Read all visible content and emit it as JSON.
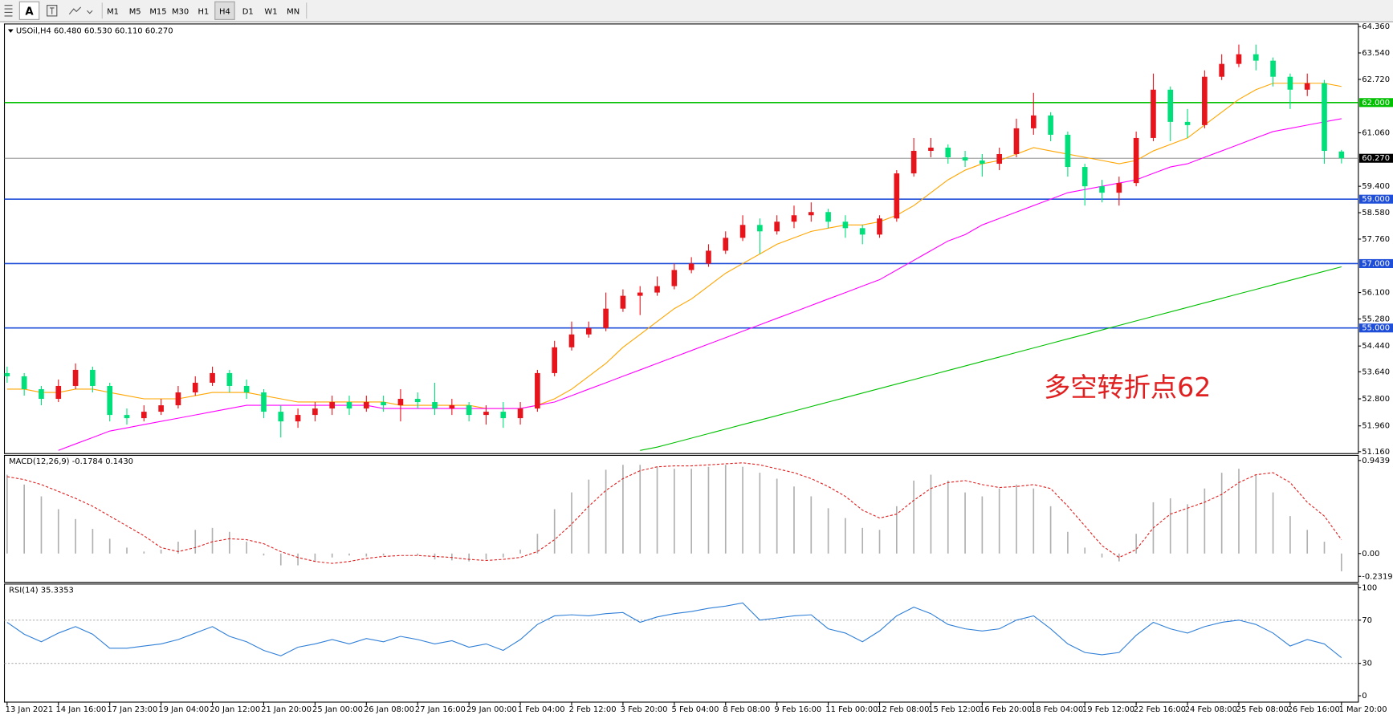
{
  "toolbar": {
    "items": [
      "A",
      "M1",
      "M5",
      "M15",
      "M30",
      "H1",
      "H4",
      "D1",
      "W1",
      "MN"
    ],
    "active": "H4"
  },
  "chart_data": [
    {
      "type": "candlestick",
      "title": "USOil,H4 60.480 60.530 60.110 60.270",
      "categories": [
        "13 Jan 2021",
        null,
        null,
        "14 Jan 16:00",
        null,
        null,
        "17 Jan 23:00",
        null,
        null,
        "19 Jan 04:00",
        null,
        null,
        "20 Jan 12:00",
        null,
        null,
        "21 Jan 20:00",
        null,
        null,
        "25 Jan 00:00",
        null,
        null,
        "26 Jan 08:00",
        null,
        null,
        "27 Jan 16:00",
        null,
        null,
        "29 Jan 00:00",
        null,
        null,
        "1 Feb 04:00",
        null,
        null,
        "2 Feb 12:00",
        null,
        null,
        "3 Feb 20:00",
        null,
        null,
        "5 Feb 04:00",
        null,
        null,
        "8 Feb 08:00",
        null,
        null,
        "9 Feb 16:00",
        null,
        null,
        "11 Feb 00:00",
        null,
        null,
        "12 Feb 08:00",
        null,
        null,
        "15 Feb 12:00",
        null,
        null,
        "16 Feb 20:00",
        null,
        null,
        "18 Feb 04:00",
        null,
        null,
        "19 Feb 12:00",
        null,
        null,
        "22 Feb 16:00",
        null,
        null,
        "24 Feb 08:00",
        null,
        null,
        "25 Feb 08:00",
        null,
        null,
        "26 Feb 16:00",
        null,
        null,
        "1 Mar 20:00"
      ],
      "open": [
        53.6,
        53.5,
        53.1,
        52.8,
        53.2,
        53.7,
        53.2,
        52.3,
        52.2,
        52.4,
        52.6,
        53.0,
        53.3,
        53.6,
        53.2,
        53.0,
        52.4,
        52.1,
        52.3,
        52.5,
        52.7,
        52.5,
        52.7,
        52.6,
        52.8,
        52.7,
        52.5,
        52.6,
        52.3,
        52.4,
        52.2,
        52.5,
        53.6,
        54.4,
        54.8,
        55.0,
        55.6,
        56.0,
        56.1,
        56.3,
        56.8,
        57.0,
        57.4,
        57.8,
        58.2,
        58.0,
        58.3,
        58.5,
        58.6,
        58.3,
        58.1,
        57.9,
        58.4,
        59.8,
        60.5,
        60.6,
        60.3,
        60.2,
        60.1,
        60.4,
        61.2,
        61.6,
        61.0,
        60.0,
        59.4,
        59.2,
        59.5,
        60.9,
        62.4,
        61.4,
        61.3,
        62.8,
        63.2,
        63.5,
        63.3,
        62.8,
        62.4,
        62.6,
        60.48
      ],
      "high": [
        53.8,
        53.6,
        53.2,
        53.4,
        53.9,
        53.8,
        53.3,
        52.5,
        52.6,
        52.8,
        53.2,
        53.5,
        53.8,
        53.7,
        53.4,
        53.1,
        52.6,
        52.5,
        52.7,
        52.9,
        52.9,
        52.9,
        52.9,
        53.1,
        53.0,
        53.3,
        52.8,
        52.7,
        52.6,
        52.7,
        52.7,
        53.7,
        54.6,
        55.2,
        55.2,
        56.1,
        56.2,
        56.3,
        56.6,
        57.0,
        57.2,
        57.6,
        58.0,
        58.5,
        58.4,
        58.5,
        58.8,
        58.9,
        58.7,
        58.5,
        58.2,
        58.5,
        59.9,
        60.9,
        60.9,
        60.7,
        60.5,
        60.4,
        60.6,
        61.5,
        62.3,
        61.7,
        61.1,
        60.1,
        59.6,
        59.7,
        61.1,
        62.9,
        62.5,
        61.8,
        63.0,
        63.5,
        63.8,
        63.8,
        63.4,
        62.9,
        62.9,
        62.7,
        60.53
      ],
      "low": [
        53.3,
        52.9,
        52.6,
        52.7,
        53.1,
        53.0,
        52.1,
        52.0,
        52.1,
        52.3,
        52.5,
        52.9,
        53.2,
        53.0,
        52.8,
        52.2,
        51.6,
        51.9,
        52.1,
        52.3,
        52.3,
        52.4,
        52.4,
        52.1,
        52.5,
        52.3,
        52.3,
        52.1,
        52.0,
        51.9,
        52.0,
        52.4,
        53.5,
        54.3,
        54.7,
        54.9,
        55.5,
        55.4,
        56.0,
        56.2,
        56.7,
        56.9,
        57.3,
        57.7,
        57.3,
        57.9,
        58.1,
        58.3,
        58.1,
        57.8,
        57.6,
        57.8,
        58.3,
        59.7,
        60.3,
        60.1,
        60.0,
        59.7,
        59.9,
        60.3,
        61.0,
        60.8,
        59.7,
        58.8,
        58.9,
        58.8,
        59.4,
        60.8,
        60.8,
        60.9,
        61.2,
        62.7,
        63.1,
        63.0,
        62.5,
        61.8,
        62.2,
        60.1,
        60.11
      ],
      "close": [
        53.5,
        53.1,
        52.8,
        53.2,
        53.7,
        53.2,
        52.3,
        52.2,
        52.4,
        52.6,
        53.0,
        53.3,
        53.6,
        53.2,
        53.0,
        52.4,
        52.1,
        52.3,
        52.5,
        52.7,
        52.5,
        52.7,
        52.6,
        52.8,
        52.7,
        52.5,
        52.6,
        52.3,
        52.4,
        52.2,
        52.5,
        53.6,
        54.4,
        54.8,
        55.0,
        55.6,
        56.0,
        56.1,
        56.3,
        56.8,
        57.0,
        57.4,
        57.8,
        58.2,
        58.0,
        58.3,
        58.5,
        58.6,
        58.3,
        58.1,
        57.9,
        58.4,
        59.8,
        60.5,
        60.6,
        60.3,
        60.2,
        60.1,
        60.4,
        61.2,
        61.6,
        61.0,
        60.0,
        59.4,
        59.2,
        59.5,
        60.9,
        62.4,
        61.4,
        61.3,
        62.8,
        63.2,
        63.5,
        63.3,
        62.8,
        62.4,
        62.6,
        60.5,
        60.27
      ],
      "up_color": "#e8141c",
      "down_color": "#00e07a",
      "lines": [
        {
          "color": "#ffa500",
          "values": [
            53.1,
            53.1,
            53.0,
            53.0,
            53.1,
            53.1,
            53.0,
            52.9,
            52.8,
            52.8,
            52.8,
            52.9,
            53.0,
            53.0,
            53.0,
            52.9,
            52.8,
            52.7,
            52.7,
            52.7,
            52.7,
            52.7,
            52.7,
            52.6,
            52.6,
            52.6,
            52.6,
            52.6,
            52.5,
            52.5,
            52.5,
            52.6,
            52.8,
            53.1,
            53.5,
            53.9,
            54.4,
            54.8,
            55.2,
            55.6,
            55.9,
            56.3,
            56.7,
            57.0,
            57.3,
            57.6,
            57.8,
            58.0,
            58.1,
            58.2,
            58.2,
            58.3,
            58.5,
            58.8,
            59.2,
            59.6,
            59.9,
            60.1,
            60.2,
            60.4,
            60.6,
            60.5,
            60.4,
            60.3,
            60.2,
            60.1,
            60.2,
            60.5,
            60.7,
            60.9,
            61.3,
            61.7,
            62.1,
            62.4,
            62.6,
            62.6,
            62.6,
            62.6,
            62.5
          ]
        },
        {
          "color": "#ff00ff",
          "values": [
            null,
            null,
            null,
            51.2,
            51.4,
            51.6,
            51.8,
            51.9,
            52.0,
            52.1,
            52.2,
            52.3,
            52.4,
            52.5,
            52.6,
            52.6,
            52.6,
            52.6,
            52.6,
            52.6,
            52.6,
            52.6,
            52.5,
            52.5,
            52.5,
            52.5,
            52.5,
            52.5,
            52.5,
            52.5,
            52.5,
            52.6,
            52.7,
            52.9,
            53.1,
            53.3,
            53.5,
            53.7,
            53.9,
            54.1,
            54.3,
            54.5,
            54.7,
            54.9,
            55.1,
            55.3,
            55.5,
            55.7,
            55.9,
            56.1,
            56.3,
            56.5,
            56.8,
            57.1,
            57.4,
            57.7,
            57.9,
            58.2,
            58.4,
            58.6,
            58.8,
            59.0,
            59.2,
            59.3,
            59.4,
            59.5,
            59.6,
            59.8,
            60.0,
            60.1,
            60.3,
            60.5,
            60.7,
            60.9,
            61.1,
            61.2,
            61.3,
            61.4,
            61.5
          ]
        },
        {
          "color": "#00c000",
          "values": [
            null,
            null,
            null,
            null,
            null,
            null,
            null,
            null,
            null,
            null,
            null,
            null,
            null,
            null,
            null,
            null,
            null,
            null,
            null,
            null,
            null,
            null,
            null,
            null,
            null,
            null,
            null,
            null,
            null,
            null,
            null,
            null,
            null,
            null,
            null,
            null,
            null,
            51.2,
            51.3,
            51.44,
            51.58,
            51.72,
            51.86,
            52.0,
            52.14,
            52.28,
            52.42,
            52.56,
            52.7,
            52.84,
            52.98,
            53.12,
            53.26,
            53.4,
            53.54,
            53.68,
            53.82,
            53.96,
            54.1,
            54.24,
            54.38,
            54.52,
            54.66,
            54.8,
            54.94,
            55.08,
            55.22,
            55.36,
            55.5,
            55.64,
            55.78,
            55.92,
            56.06,
            56.2,
            56.34,
            56.48,
            56.62,
            56.76,
            56.9
          ]
        }
      ],
      "levels": [
        {
          "value": 62,
          "label": "62.000",
          "color": "#00c000"
        },
        {
          "value": 59,
          "label": "59.000",
          "color": "#1f4fd8"
        },
        {
          "value": 57,
          "label": "57.000",
          "color": "#1f4fd8"
        },
        {
          "value": 55,
          "label": "55.000",
          "color": "#1f4fd8"
        },
        {
          "value": 60.27,
          "label": "60.270",
          "color": "#808080"
        }
      ],
      "annotation": "多空转折点62",
      "annotation_color": "#e02020",
      "ylim": [
        51.1,
        64.44
      ],
      "yticks": [
        {
          "value": 64.36,
          "label": "64.360"
        },
        {
          "value": 63.54,
          "label": "63.540"
        },
        {
          "value": 62.72,
          "label": "62.720"
        },
        {
          "value": 61.06,
          "label": "61.060"
        },
        {
          "value": 59.4,
          "label": "59.400"
        },
        {
          "value": 58.58,
          "label": "58.580"
        },
        {
          "value": 57.76,
          "label": "57.760"
        },
        {
          "value": 56.1,
          "label": "56.100"
        },
        {
          "value": 55.28,
          "label": "55.280"
        },
        {
          "value": 54.44,
          "label": "54.440"
        },
        {
          "value": 53.64,
          "label": "53.640"
        },
        {
          "value": 52.8,
          "label": "52.800"
        },
        {
          "value": 51.96,
          "label": "51.960"
        },
        {
          "value": 51.16,
          "label": "51.160"
        }
      ]
    },
    {
      "type": "macd",
      "title": "MACD(12,26,9) -0.1784 0.1430",
      "hist_color": "#b0b0b0",
      "signal_color": "#e02020",
      "values": [
        0.8,
        0.7,
        0.58,
        0.45,
        0.35,
        0.25,
        0.15,
        0.06,
        0.02,
        0.04,
        0.12,
        0.24,
        0.26,
        0.22,
        0.12,
        -0.02,
        -0.12,
        -0.12,
        -0.08,
        -0.04,
        -0.02,
        -0.03,
        -0.02,
        0.0,
        -0.02,
        -0.06,
        -0.07,
        -0.08,
        -0.06,
        -0.04,
        0.04,
        0.2,
        0.45,
        0.62,
        0.75,
        0.85,
        0.9,
        0.9,
        0.88,
        0.86,
        0.86,
        0.88,
        0.9,
        0.88,
        0.82,
        0.76,
        0.68,
        0.58,
        0.46,
        0.36,
        0.26,
        0.24,
        0.48,
        0.74,
        0.8,
        0.74,
        0.62,
        0.58,
        0.66,
        0.7,
        0.66,
        0.48,
        0.22,
        0.06,
        -0.04,
        -0.08,
        0.2,
        0.52,
        0.56,
        0.5,
        0.66,
        0.82,
        0.86,
        0.8,
        0.62,
        0.38,
        0.24,
        0.12,
        -0.18
      ],
      "signal": [
        0.78,
        0.75,
        0.7,
        0.63,
        0.56,
        0.48,
        0.38,
        0.28,
        0.18,
        0.06,
        0.02,
        0.06,
        0.12,
        0.15,
        0.14,
        0.1,
        0.02,
        -0.04,
        -0.08,
        -0.1,
        -0.08,
        -0.05,
        -0.03,
        -0.02,
        -0.02,
        -0.03,
        -0.04,
        -0.06,
        -0.07,
        -0.06,
        -0.04,
        0.02,
        0.14,
        0.3,
        0.48,
        0.64,
        0.76,
        0.84,
        0.88,
        0.89,
        0.89,
        0.9,
        0.91,
        0.92,
        0.9,
        0.86,
        0.82,
        0.76,
        0.68,
        0.58,
        0.44,
        0.36,
        0.4,
        0.54,
        0.66,
        0.72,
        0.74,
        0.7,
        0.67,
        0.68,
        0.7,
        0.66,
        0.48,
        0.28,
        0.08,
        -0.04,
        0.04,
        0.26,
        0.4,
        0.46,
        0.52,
        0.6,
        0.72,
        0.8,
        0.82,
        0.72,
        0.52,
        0.38,
        0.14
      ],
      "ylim": [
        -0.292,
        0.996
      ],
      "yticks": [
        0.9439,
        {
          "value": 0,
          "label": "0.00"
        },
        -0.2319
      ]
    },
    {
      "type": "rsi",
      "title": "RSI(14) 35.3353",
      "color": "#2f7fd8",
      "values": [
        68,
        57,
        50,
        58,
        64,
        57,
        44,
        44,
        46,
        48,
        52,
        58,
        64,
        55,
        50,
        42,
        37,
        45,
        48,
        52,
        48,
        53,
        50,
        55,
        52,
        48,
        51,
        45,
        48,
        42,
        52,
        66,
        74,
        75,
        74,
        76,
        77,
        68,
        73,
        76,
        78,
        81,
        83,
        86,
        70,
        72,
        74,
        75,
        62,
        58,
        50,
        60,
        74,
        82,
        76,
        66,
        62,
        60,
        62,
        70,
        74,
        62,
        48,
        40,
        38,
        40,
        56,
        68,
        62,
        58,
        64,
        68,
        70,
        66,
        58,
        46,
        52,
        48,
        35.3
      ],
      "levels": [
        70,
        30
      ],
      "ylim": [
        -5.9,
        103.4
      ],
      "yticks": [
        100,
        70,
        30,
        0
      ]
    }
  ]
}
